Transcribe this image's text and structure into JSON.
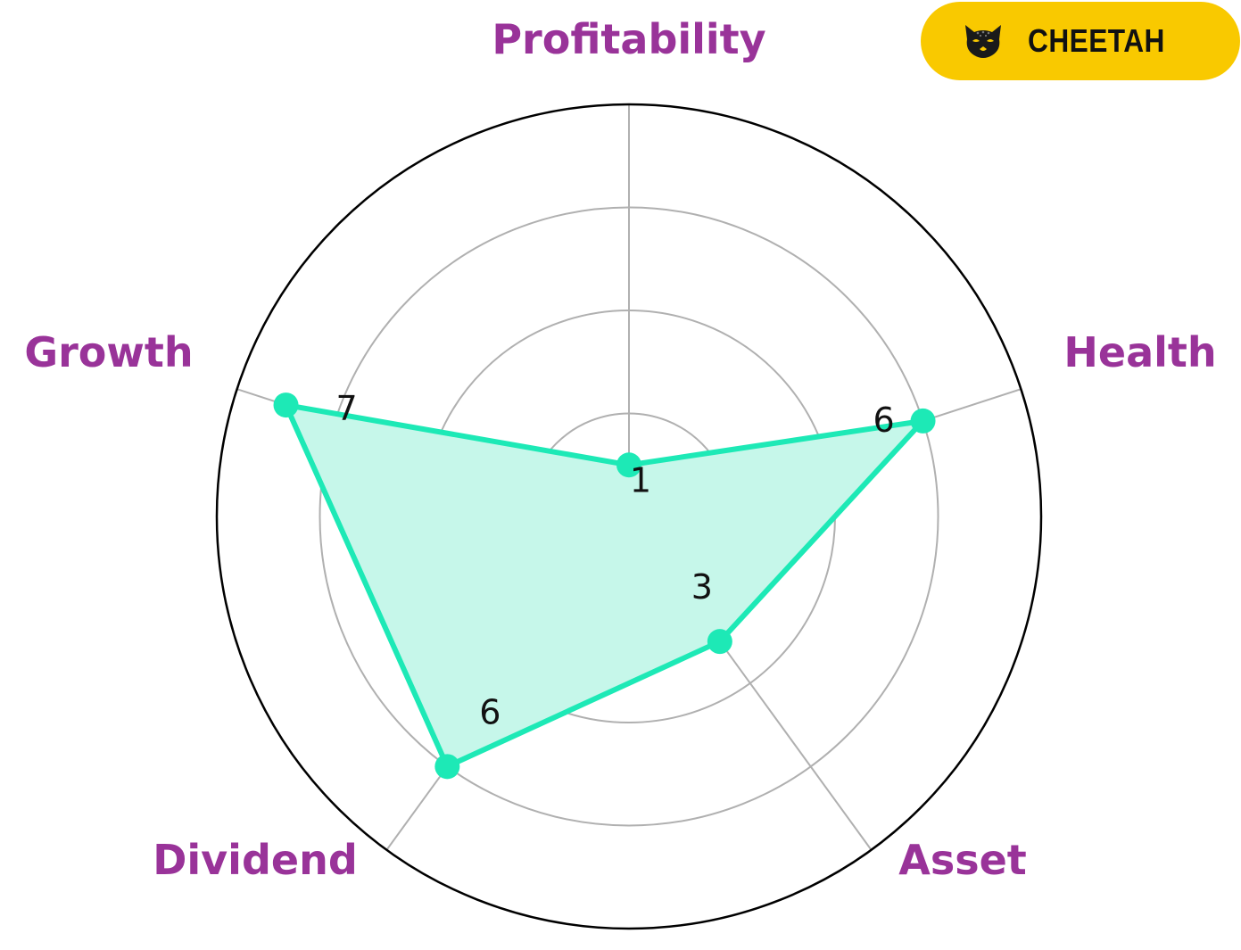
{
  "chart_data": {
    "type": "radar",
    "axes": [
      "Profitability",
      "Health",
      "Asset",
      "Dividend",
      "Growth"
    ],
    "values": [
      1,
      6,
      3,
      6,
      7
    ],
    "rlim": [
      0,
      8
    ],
    "grid": true,
    "colors": {
      "series_line": "#1de9b6",
      "series_fill": "#c6f7ea",
      "axis_label": "#993399",
      "grid": "#b0b0b0",
      "outer_ring": "#000000"
    }
  },
  "badge": {
    "label": "CHEETAH",
    "icon": "cheetah-face-icon",
    "color": "#f9c900"
  }
}
